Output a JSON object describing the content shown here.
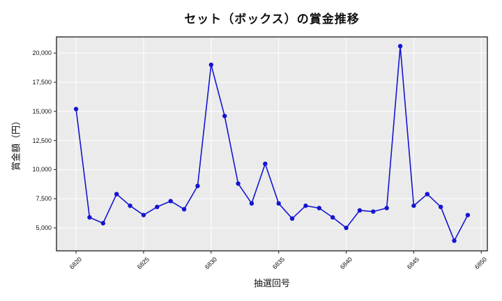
{
  "figure": {
    "title": "セット（ボックス）の賞金推移",
    "background": "#ffffff"
  },
  "chart_data": {
    "type": "line",
    "title": "セット（ボックス）の賞金推移",
    "xlabel": "抽選回号",
    "ylabel": "賞金額（円）",
    "x": [
      6820,
      6821,
      6822,
      6823,
      6824,
      6825,
      6826,
      6827,
      6828,
      6829,
      6830,
      6831,
      6832,
      6833,
      6834,
      6835,
      6836,
      6837,
      6838,
      6839,
      6840,
      6841,
      6842,
      6843,
      6844,
      6845,
      6846,
      6847,
      6848,
      6849
    ],
    "values": [
      15200,
      5900,
      5400,
      7900,
      6900,
      6100,
      6800,
      7300,
      6600,
      8600,
      19000,
      14600,
      8800,
      7100,
      10500,
      7100,
      5800,
      6900,
      6700,
      5900,
      5000,
      6500,
      6400,
      6700,
      20600,
      6900,
      7900,
      6800,
      3900,
      6100
    ],
    "xticks": [
      6820,
      6825,
      6830,
      6835,
      6840,
      6845,
      6850
    ],
    "yticks": [
      5000,
      7500,
      10000,
      12500,
      15000,
      17500,
      20000
    ],
    "xlim": [
      6818.55,
      6850.45
    ],
    "ylim": [
      3030,
      21390
    ],
    "grid": true,
    "legend_position": "none",
    "line_color": "#1414d2",
    "marker": "circle",
    "plot_bg": "#ebebeb",
    "grid_color": "#ffffff",
    "spine_color": "#1c1c1c"
  }
}
